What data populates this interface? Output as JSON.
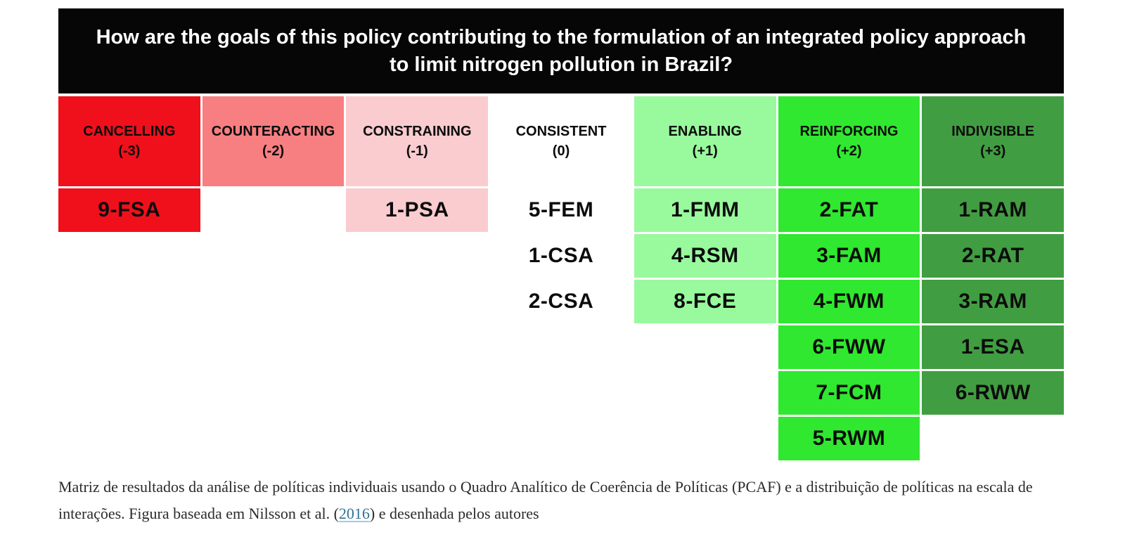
{
  "chart_data": {
    "type": "table",
    "title": "How are the goals of this policy contributing to the formulation of an integrated policy approach to limit nitrogen pollution in Brazil?",
    "legend_note": "policy coherence interaction scale from -3 (cancelling) to +3 (indivisible)",
    "columns": [
      {
        "label": "CANCELLING",
        "score": "(-3)",
        "color": "#f0101b",
        "cells": [
          "9-FSA"
        ]
      },
      {
        "label": "COUNTERACTING",
        "score": "(-2)",
        "color": "#f77f81",
        "cells": []
      },
      {
        "label": "CONSTRAINING",
        "score": "(-1)",
        "color": "#facccf",
        "cells": [
          "1-PSA"
        ]
      },
      {
        "label": "CONSISTENT",
        "score": "(0)",
        "color": "#ffffff",
        "cells": [
          "5-FEM",
          "1-CSA",
          "2-CSA"
        ]
      },
      {
        "label": "ENABLING",
        "score": "(+1)",
        "color": "#99f99d",
        "cells": [
          "1-FMM",
          "4-RSM",
          "8-FCE"
        ]
      },
      {
        "label": "REINFORCING",
        "score": "(+2)",
        "color": "#2fe82f",
        "cells": [
          "2-FAT",
          "3-FAM",
          "4-FWM",
          "6-FWW",
          "7-FCM",
          "5-RWM"
        ]
      },
      {
        "label": "INDIVISIBLE",
        "score": "(+3)",
        "color": "#419d41",
        "cells": [
          "1-RAM",
          "2-RAT",
          "3-RAM",
          "1-ESA",
          "6-RWW"
        ]
      }
    ]
  },
  "caption": {
    "text_before_link": "Matriz de resultados da análise de políticas individuais usando o Quadro Analítico de Coerência de Políticas (PCAF) e a distribuição de políticas na escala de interações. Figura baseada em Nilsson et al. (",
    "link_text": "2016",
    "text_after_link": ") e desenhada pelos autores",
    "link_color": "#2d7396"
  }
}
